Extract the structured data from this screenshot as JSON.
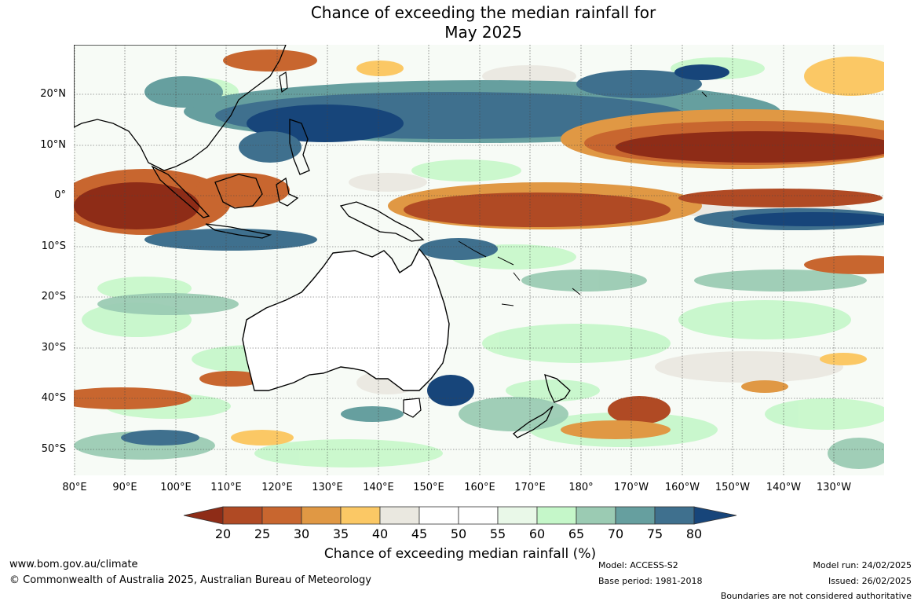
{
  "title": {
    "line1": "Chance of exceeding the median rainfall for",
    "line2": "May 2025"
  },
  "map": {
    "latitude_labels": [
      "20°N",
      "10°N",
      "0°",
      "10°S",
      "20°S",
      "30°S",
      "40°S",
      "50°S"
    ],
    "longitude_labels": [
      "80°E",
      "90°E",
      "100°E",
      "110°E",
      "120°E",
      "130°E",
      "140°E",
      "150°E",
      "160°E",
      "170°E",
      "180°",
      "170°W",
      "160°W",
      "150°W",
      "140°W",
      "130°W"
    ],
    "extent": {
      "lon_range": "80°E to 240°E",
      "lat_range": "30°N to 55°S"
    },
    "gridlines": true
  },
  "legend": {
    "title": "Chance of exceeding median rainfall (%)",
    "ticks": [
      "20",
      "25",
      "30",
      "35",
      "40",
      "45",
      "50",
      "55",
      "60",
      "65",
      "70",
      "75",
      "80"
    ],
    "colors": {
      "below_20": "#8e2c17",
      "20_25": "#b04a24",
      "25_30": "#c8662f",
      "30_35": "#e09844",
      "35_40": "#fbc865",
      "40_45": "#eae8e0",
      "45_50": "#ffffff",
      "50_55": "#ffffff",
      "55_60": "#e9f8e8",
      "60_65": "#c5f7c9",
      "65_70": "#9bcbb3",
      "70_75": "#669f9f",
      "75_80": "#3f708e",
      "above_80": "#17457a"
    }
  },
  "footer": {
    "website": "www.bom.gov.au/climate",
    "copyright": "© Commonwealth of Australia 2025, Australian Bureau of Meteorology",
    "model": "Model: ACCESS-S2",
    "base_period": "Base period: 1981-2018",
    "model_run": "Model run: 24/02/2025",
    "issued": "Issued: 26/02/2025",
    "disclaimer": "Boundaries are not considered authoritative"
  }
}
